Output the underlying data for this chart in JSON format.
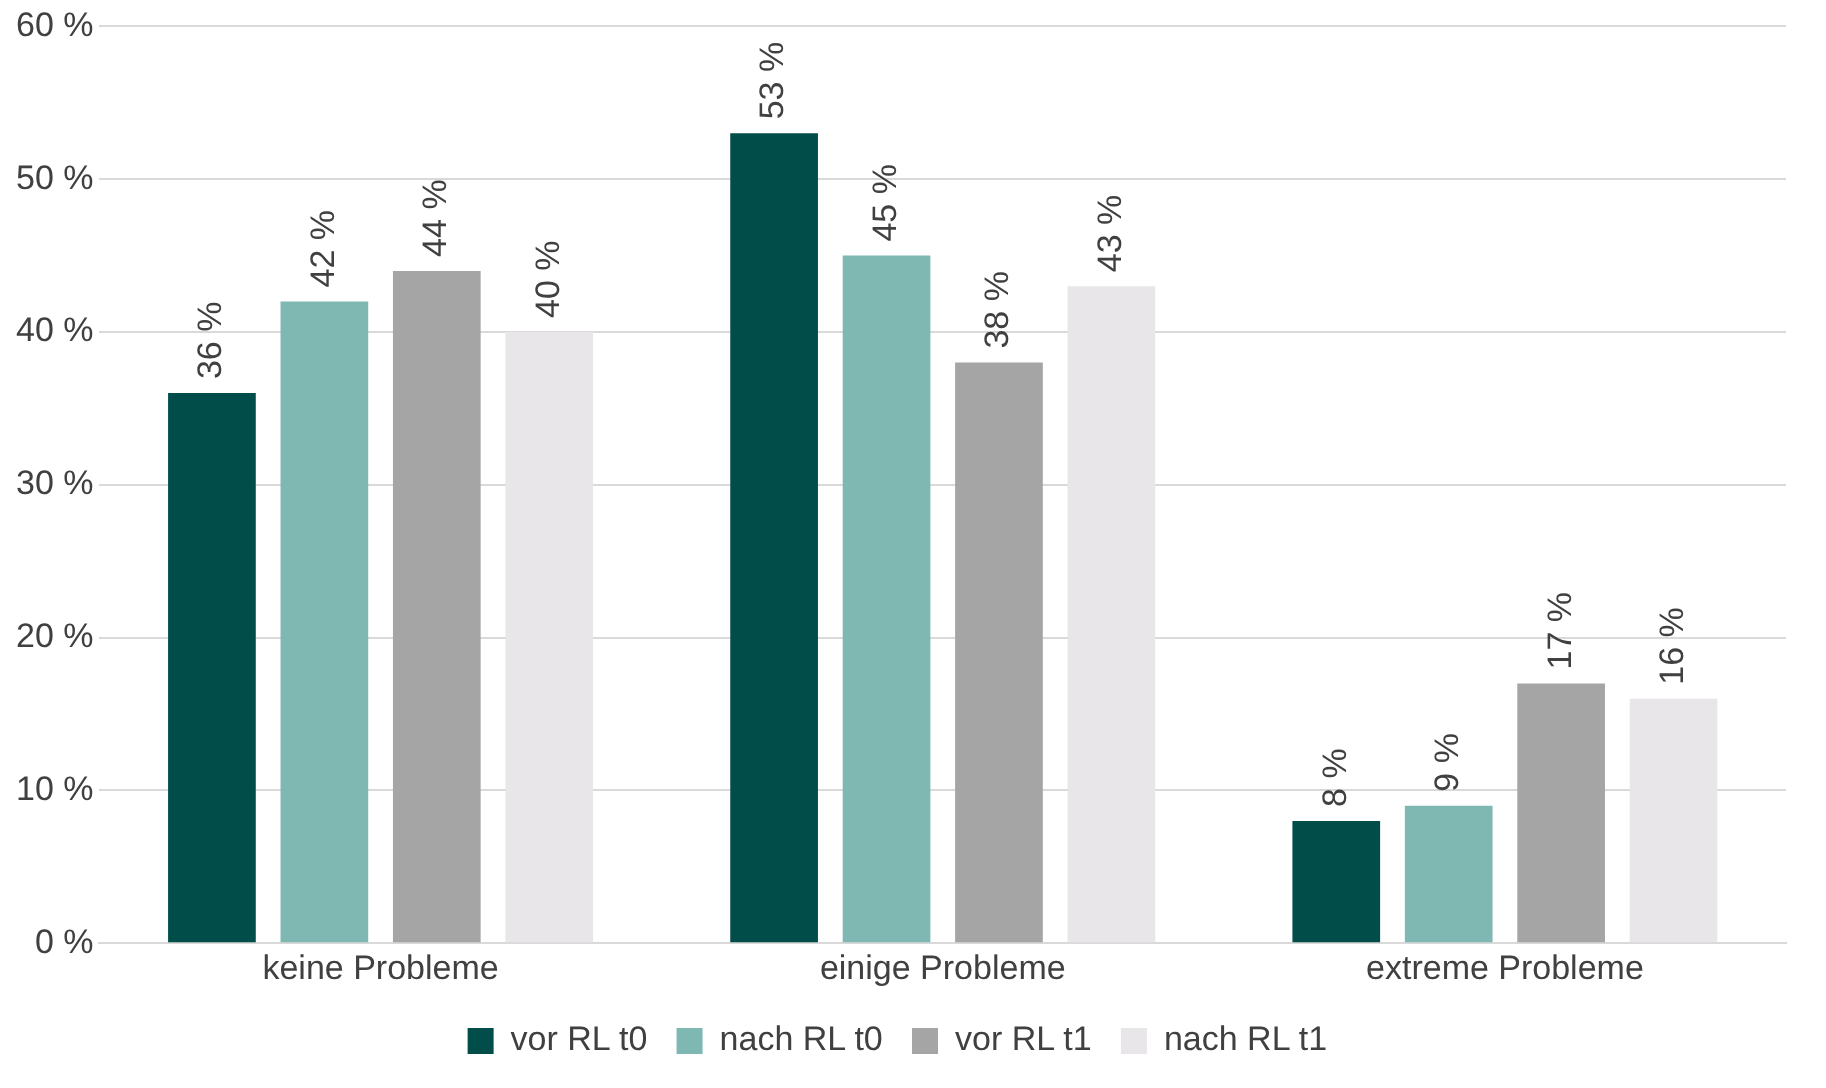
{
  "chart_data": {
    "type": "bar",
    "categories": [
      "keine Probleme",
      "einige Probleme",
      "extreme Probleme"
    ],
    "series": [
      {
        "name": "vor RL t0",
        "color": "#004d4a",
        "values": [
          36,
          53,
          8
        ],
        "value_labels": [
          "36 %",
          "53 %",
          "8 %"
        ]
      },
      {
        "name": "nach RL t0",
        "color": "#7fb8b3",
        "values": [
          42,
          45,
          9
        ],
        "value_labels": [
          "42 %",
          "45 %",
          "9 %"
        ]
      },
      {
        "name": "vor RL t1",
        "color": "#a6a5a5",
        "values": [
          44,
          38,
          17
        ],
        "value_labels": [
          "44 %",
          "38 %",
          "17 %"
        ]
      },
      {
        "name": "nach RL t1",
        "color": "#e8e6e8",
        "values": [
          40,
          43,
          16
        ],
        "value_labels": [
          "40 %",
          "43 %",
          "16 %"
        ]
      }
    ],
    "ylim": [
      0,
      60
    ],
    "yticks": [
      {
        "value": 0,
        "label": "0 %"
      },
      {
        "value": 10,
        "label": "10 %"
      },
      {
        "value": 20,
        "label": "20 %"
      },
      {
        "value": 30,
        "label": "30 %"
      },
      {
        "value": 40,
        "label": "40 %"
      },
      {
        "value": 50,
        "label": "50 %"
      },
      {
        "value": 60,
        "label": "60 %"
      }
    ],
    "grid": "y",
    "legend": "bottom"
  }
}
